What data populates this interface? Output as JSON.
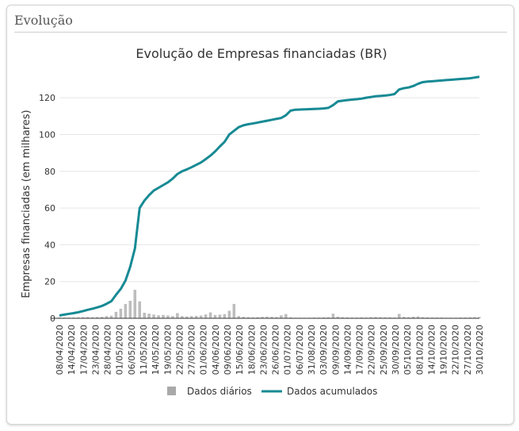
{
  "panel": {
    "title": "Evolução"
  },
  "colors": {
    "line": "#178a94",
    "bars": "#bdbdbd",
    "grid": "#e6e6e6",
    "axis": "#333333"
  },
  "chart_data": {
    "type": "line",
    "title": "Evolução de Empresas financiadas (BR)",
    "xlabel": "",
    "ylabel": "Empresas financiadas (em milhares)",
    "ylim": [
      0,
      130
    ],
    "yticks": [
      0,
      20,
      40,
      60,
      80,
      100,
      120
    ],
    "grid": true,
    "legend_position": "bottom",
    "xticks": [
      "08/04/2020",
      "14/04/2020",
      "17/04/2020",
      "23/04/2020",
      "28/04/2020",
      "01/05/2020",
      "06/05/2020",
      "11/05/2020",
      "14/05/2020",
      "19/05/2020",
      "22/05/2020",
      "27/05/2020",
      "01/06/2020",
      "04/06/2020",
      "09/06/2020",
      "15/06/2020",
      "18/06/2020",
      "23/06/2020",
      "26/06/2020",
      "01/07/2020",
      "06/07/2020",
      "31/08/2020",
      "03/09/2020",
      "09/09/2020",
      "14/09/2020",
      "17/09/2020",
      "22/09/2020",
      "25/09/2020",
      "30/09/2020",
      "05/10/2020",
      "08/10/2020",
      "14/10/2020",
      "19/10/2020",
      "22/10/2020",
      "27/10/2020",
      "30/10/2020"
    ],
    "series": [
      {
        "name": "Dados diários",
        "type": "bar",
        "values": [
          0.5,
          0.4,
          0.4,
          0.4,
          0.5,
          0.6,
          0.7,
          0.6,
          0.7,
          0.8,
          1.2,
          1.4,
          3.5,
          5.2,
          7.8,
          9.5,
          15.5,
          9.2,
          3.0,
          2.5,
          2.0,
          1.6,
          1.8,
          1.5,
          1.2,
          2.8,
          1.2,
          1.0,
          1.2,
          1.3,
          1.5,
          2.1,
          3.2,
          1.8,
          2.0,
          2.3,
          4.1,
          7.8,
          1.2,
          0.8,
          0.6,
          0.5,
          0.6,
          0.8,
          0.9,
          0.8,
          0.7,
          1.6,
          2.3,
          0.5,
          0.3,
          0.3,
          0.3,
          0.3,
          0.4,
          0.4,
          0.5,
          0.6,
          2.5,
          0.9,
          0.6,
          0.5,
          0.4,
          0.4,
          0.5,
          0.4,
          0.6,
          0.7,
          0.6,
          0.5,
          0.5,
          0.4,
          2.4,
          0.8,
          0.6,
          0.9,
          1.0,
          0.6,
          0.5,
          0.4,
          0.4,
          0.4,
          0.3,
          0.3,
          0.3,
          0.4,
          0.4,
          0.5,
          0.6,
          0.7
        ]
      },
      {
        "name": "Dados acumulados",
        "type": "line",
        "values": [
          1.5,
          2.0,
          2.4,
          2.8,
          3.3,
          3.9,
          4.6,
          5.2,
          5.9,
          6.7,
          7.9,
          9.3,
          12.8,
          16.0,
          20.5,
          28.0,
          38.0,
          60.0,
          64.0,
          67.0,
          69.5,
          71.0,
          72.5,
          74.0,
          76.0,
          78.5,
          80.0,
          81.0,
          82.2,
          83.5,
          84.8,
          86.6,
          88.5,
          90.8,
          93.5,
          96.0,
          100.0,
          102.0,
          104.0,
          105.0,
          105.6,
          106.0,
          106.5,
          107.0,
          107.5,
          108.0,
          108.5,
          109.0,
          110.5,
          113.0,
          113.5,
          113.6,
          113.7,
          113.8,
          113.9,
          114.0,
          114.2,
          114.5,
          116.0,
          118.0,
          118.4,
          118.7,
          119.0,
          119.2,
          119.5,
          120.0,
          120.4,
          120.8,
          121.0,
          121.2,
          121.5,
          122.0,
          124.5,
          125.2,
          125.6,
          126.4,
          127.6,
          128.5,
          128.8,
          129.0,
          129.2,
          129.4,
          129.6,
          129.8,
          130.0,
          130.2,
          130.4,
          130.6,
          131.0,
          131.4
        ]
      }
    ]
  }
}
